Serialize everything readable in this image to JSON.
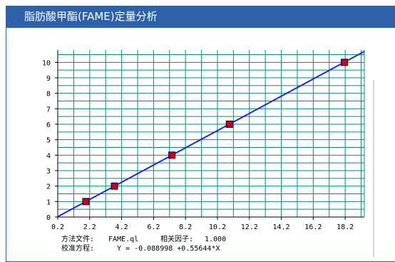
{
  "window": {
    "title": "脂肪酸甲酯(FAME)定量分析"
  },
  "colors": {
    "header": "#2e62a8",
    "grid": "#0e8686",
    "line": "#1a28d8",
    "point_fill": "#cc0000",
    "point_stroke": "#000080"
  },
  "info": {
    "method_label": "方法文件:",
    "method_value": "FAME.ql",
    "corr_label": "相关因子:",
    "corr_value": "1.000",
    "equation_label": "校准方程:",
    "equation_value": "Y = -0.088998 +0.55644*X"
  },
  "chart_data": {
    "type": "scatter",
    "title": "",
    "xlabel": "",
    "ylabel": "",
    "xlim": [
      0.2,
      19.4
    ],
    "ylim": [
      0,
      10.8
    ],
    "grid": true,
    "x_ticks": [
      "0.2",
      "2.2",
      "4.2",
      "6.2",
      "8.2",
      "10.2",
      "12.2",
      "14.2",
      "16.2",
      "18.2"
    ],
    "y_ticks": [
      "0",
      "1",
      "2",
      "3",
      "4",
      "5",
      "6",
      "7",
      "8",
      "9",
      "10"
    ],
    "series": [
      {
        "points": [
          {
            "x": 1.96,
            "y": 1
          },
          {
            "x": 3.75,
            "y": 2
          },
          {
            "x": 7.35,
            "y": 4
          },
          {
            "x": 10.95,
            "y": 6
          },
          {
            "x": 18.15,
            "y": 10
          }
        ]
      }
    ],
    "fit_line": {
      "intercept": -0.088998,
      "slope": 0.55644
    }
  }
}
